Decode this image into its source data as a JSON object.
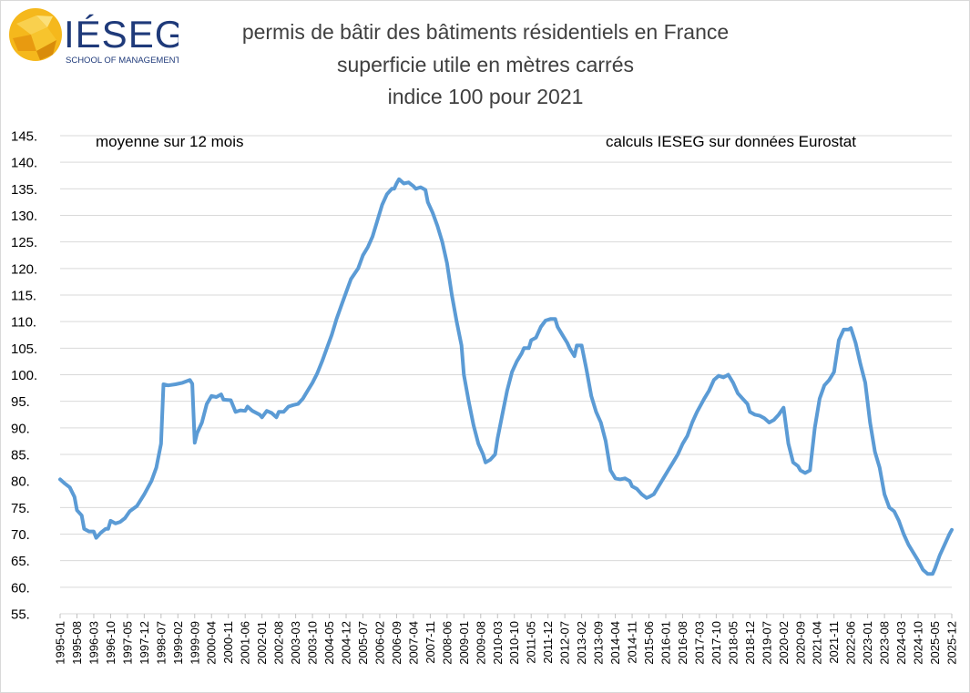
{
  "header": {
    "logo_text": "IÉSEG",
    "logo_subtitle": "SCHOOL OF MANAGEMENT",
    "title_line1": "permis de bâtir des bâtiments résidentiels en France",
    "title_line2": "superficie utile en mètres carrés",
    "title_line3": "indice 100 pour 2021"
  },
  "notes": {
    "left": "moyenne sur 12 mois",
    "right": "calculs IESEG sur données Eurostat"
  },
  "colors": {
    "line": "#5b9bd5",
    "grid": "#d9d9d9",
    "logo_gold": "#f5b81c",
    "logo_text": "#1f3a7a"
  },
  "chart_data": {
    "type": "line",
    "title": "permis de bâtir des bâtiments résidentiels en France — superficie utile en mètres carrés — indice 100 pour 2021",
    "xlabel": "",
    "ylabel": "",
    "ylim": [
      55,
      145
    ],
    "y_ticks": [
      "55.",
      "60.",
      "65.",
      "70.",
      "75.",
      "80.",
      "85.",
      "90.",
      "95.",
      "100.",
      "105.",
      "110.",
      "115.",
      "120.",
      "125.",
      "130.",
      "135.",
      "140.",
      "145."
    ],
    "x_start": "1995-01",
    "x_end": "2025-12",
    "x_tick_labels": [
      "1995-01",
      "1995-08",
      "1996-03",
      "1996-10",
      "1997-05",
      "1997-12",
      "1998-07",
      "1999-02",
      "1999-09",
      "2000-04",
      "2000-11",
      "2001-06",
      "2002-01",
      "2002-08",
      "2003-03",
      "2003-10",
      "2004-05",
      "2004-12",
      "2005-07",
      "2006-02",
      "2006-09",
      "2007-04",
      "2007-11",
      "2008-06",
      "2009-01",
      "2009-08",
      "2010-03",
      "2010-10",
      "2011-05",
      "2011-12",
      "2012-07",
      "2013-02",
      "2013-09",
      "2014-04",
      "2014-11",
      "2015-06",
      "2016-01",
      "2016-08",
      "2017-03",
      "2017-10",
      "2018-05",
      "2018-12",
      "2019-07",
      "2020-02",
      "2020-09",
      "2021-04",
      "2021-11",
      "2022-06",
      "2023-01",
      "2023-08",
      "2024-03",
      "2024-10",
      "2025-05",
      "2025-12"
    ],
    "grid": true,
    "legend": "none",
    "series": [
      {
        "name": "indice superficie utile (moyenne 12 mois)",
        "points": [
          [
            "1995-01",
            80.3
          ],
          [
            "1995-03",
            79.5
          ],
          [
            "1995-05",
            78.8
          ],
          [
            "1995-07",
            77.0
          ],
          [
            "1995-08",
            74.5
          ],
          [
            "1995-10",
            73.5
          ],
          [
            "1995-11",
            71.0
          ],
          [
            "1996-01",
            70.5
          ],
          [
            "1996-03",
            70.5
          ],
          [
            "1996-04",
            69.3
          ],
          [
            "1996-06",
            70.3
          ],
          [
            "1996-08",
            71.0
          ],
          [
            "1996-09",
            71.0
          ],
          [
            "1996-10",
            72.5
          ],
          [
            "1996-12",
            72.0
          ],
          [
            "1997-02",
            72.3
          ],
          [
            "1997-04",
            73.0
          ],
          [
            "1997-06",
            74.3
          ],
          [
            "1997-09",
            75.3
          ],
          [
            "1997-12",
            77.5
          ],
          [
            "1998-03",
            80.0
          ],
          [
            "1998-05",
            82.5
          ],
          [
            "1998-07",
            87.0
          ],
          [
            "1998-08",
            98.2
          ],
          [
            "1998-10",
            98.0
          ],
          [
            "1999-01",
            98.2
          ],
          [
            "1999-04",
            98.5
          ],
          [
            "1999-07",
            99.0
          ],
          [
            "1999-08",
            98.3
          ],
          [
            "1999-09",
            87.2
          ],
          [
            "1999-10",
            89.0
          ],
          [
            "1999-12",
            91.0
          ],
          [
            "2000-02",
            94.5
          ],
          [
            "2000-04",
            96.0
          ],
          [
            "2000-06",
            95.8
          ],
          [
            "2000-08",
            96.3
          ],
          [
            "2000-09",
            95.3
          ],
          [
            "2000-12",
            95.2
          ],
          [
            "2001-02",
            93.0
          ],
          [
            "2001-04",
            93.3
          ],
          [
            "2001-06",
            93.2
          ],
          [
            "2001-07",
            94.0
          ],
          [
            "2001-09",
            93.2
          ],
          [
            "2001-12",
            92.5
          ],
          [
            "2002-01",
            92.0
          ],
          [
            "2002-03",
            93.2
          ],
          [
            "2002-05",
            92.8
          ],
          [
            "2002-07",
            92.0
          ],
          [
            "2002-08",
            93.0
          ],
          [
            "2002-10",
            93.0
          ],
          [
            "2002-12",
            94.0
          ],
          [
            "2003-02",
            94.3
          ],
          [
            "2003-04",
            94.5
          ],
          [
            "2003-06",
            95.5
          ],
          [
            "2003-08",
            97.0
          ],
          [
            "2003-10",
            98.5
          ],
          [
            "2003-12",
            100.3
          ],
          [
            "2004-02",
            102.5
          ],
          [
            "2004-04",
            105.0
          ],
          [
            "2004-06",
            107.5
          ],
          [
            "2004-08",
            110.5
          ],
          [
            "2004-10",
            113.0
          ],
          [
            "2004-12",
            115.5
          ],
          [
            "2005-02",
            118.0
          ],
          [
            "2005-05",
            120.0
          ],
          [
            "2005-07",
            122.5
          ],
          [
            "2005-09",
            124.0
          ],
          [
            "2005-11",
            126.0
          ],
          [
            "2006-01",
            129.0
          ],
          [
            "2006-03",
            132.0
          ],
          [
            "2006-05",
            134.0
          ],
          [
            "2006-07",
            135.0
          ],
          [
            "2006-08",
            135.0
          ],
          [
            "2006-09",
            136.0
          ],
          [
            "2006-10",
            136.8
          ],
          [
            "2006-12",
            136.0
          ],
          [
            "2007-02",
            136.2
          ],
          [
            "2007-04",
            135.5
          ],
          [
            "2007-05",
            135.0
          ],
          [
            "2007-07",
            135.3
          ],
          [
            "2007-09",
            134.8
          ],
          [
            "2007-10",
            132.5
          ],
          [
            "2007-12",
            130.5
          ],
          [
            "2008-02",
            128.0
          ],
          [
            "2008-04",
            125.0
          ],
          [
            "2008-06",
            121.0
          ],
          [
            "2008-08",
            115.0
          ],
          [
            "2008-10",
            110.0
          ],
          [
            "2008-12",
            105.5
          ],
          [
            "2009-01",
            100.0
          ],
          [
            "2009-03",
            95.0
          ],
          [
            "2009-05",
            90.5
          ],
          [
            "2009-07",
            87.0
          ],
          [
            "2009-09",
            85.0
          ],
          [
            "2009-10",
            83.5
          ],
          [
            "2009-12",
            84.0
          ],
          [
            "2010-02",
            85.0
          ],
          [
            "2010-03",
            88.0
          ],
          [
            "2010-05",
            92.5
          ],
          [
            "2010-07",
            97.0
          ],
          [
            "2010-09",
            100.5
          ],
          [
            "2010-11",
            102.5
          ],
          [
            "2011-01",
            104.0
          ],
          [
            "2011-02",
            105.0
          ],
          [
            "2011-04",
            105.0
          ],
          [
            "2011-05",
            106.5
          ],
          [
            "2011-07",
            107.0
          ],
          [
            "2011-09",
            109.0
          ],
          [
            "2011-11",
            110.2
          ],
          [
            "2012-01",
            110.5
          ],
          [
            "2012-03",
            110.5
          ],
          [
            "2012-04",
            109.0
          ],
          [
            "2012-06",
            107.5
          ],
          [
            "2012-08",
            106.0
          ],
          [
            "2012-09",
            105.0
          ],
          [
            "2012-11",
            103.5
          ],
          [
            "2012-12",
            105.5
          ],
          [
            "2013-02",
            105.5
          ],
          [
            "2013-04",
            101.0
          ],
          [
            "2013-06",
            96.0
          ],
          [
            "2013-08",
            93.0
          ],
          [
            "2013-10",
            91.0
          ],
          [
            "2013-12",
            87.5
          ],
          [
            "2014-02",
            82.0
          ],
          [
            "2014-04",
            80.5
          ],
          [
            "2014-06",
            80.3
          ],
          [
            "2014-08",
            80.5
          ],
          [
            "2014-10",
            80.0
          ],
          [
            "2014-11",
            79.0
          ],
          [
            "2015-01",
            78.5
          ],
          [
            "2015-03",
            77.5
          ],
          [
            "2015-05",
            76.8
          ],
          [
            "2015-06",
            77.0
          ],
          [
            "2015-08",
            77.5
          ],
          [
            "2015-10",
            79.0
          ],
          [
            "2015-12",
            80.5
          ],
          [
            "2016-02",
            82.0
          ],
          [
            "2016-04",
            83.5
          ],
          [
            "2016-06",
            85.0
          ],
          [
            "2016-08",
            87.0
          ],
          [
            "2016-10",
            88.5
          ],
          [
            "2016-12",
            91.0
          ],
          [
            "2017-02",
            93.0
          ],
          [
            "2017-05",
            95.5
          ],
          [
            "2017-07",
            97.0
          ],
          [
            "2017-09",
            99.0
          ],
          [
            "2017-11",
            99.8
          ],
          [
            "2018-01",
            99.5
          ],
          [
            "2018-03",
            100.0
          ],
          [
            "2018-05",
            98.5
          ],
          [
            "2018-07",
            96.5
          ],
          [
            "2018-09",
            95.5
          ],
          [
            "2018-11",
            94.5
          ],
          [
            "2018-12",
            93.0
          ],
          [
            "2019-02",
            92.5
          ],
          [
            "2019-04",
            92.3
          ],
          [
            "2019-06",
            91.8
          ],
          [
            "2019-08",
            91.0
          ],
          [
            "2019-10",
            91.5
          ],
          [
            "2019-12",
            92.5
          ],
          [
            "2020-02",
            93.8
          ],
          [
            "2020-04",
            87.0
          ],
          [
            "2020-06",
            83.5
          ],
          [
            "2020-08",
            82.8
          ],
          [
            "2020-09",
            82.0
          ],
          [
            "2020-11",
            81.5
          ],
          [
            "2021-01",
            82.0
          ],
          [
            "2021-03",
            90.0
          ],
          [
            "2021-05",
            95.5
          ],
          [
            "2021-07",
            98.0
          ],
          [
            "2021-09",
            99.0
          ],
          [
            "2021-11",
            100.5
          ],
          [
            "2022-01",
            106.5
          ],
          [
            "2022-03",
            108.5
          ],
          [
            "2022-05",
            108.5
          ],
          [
            "2022-06",
            108.8
          ],
          [
            "2022-08",
            106.0
          ],
          [
            "2022-10",
            102.0
          ],
          [
            "2022-12",
            98.5
          ],
          [
            "2023-02",
            91.0
          ],
          [
            "2023-04",
            85.5
          ],
          [
            "2023-06",
            82.5
          ],
          [
            "2023-08",
            77.5
          ],
          [
            "2023-10",
            75.0
          ],
          [
            "2023-12",
            74.3
          ],
          [
            "2024-02",
            72.5
          ],
          [
            "2024-04",
            70.0
          ],
          [
            "2024-06",
            68.0
          ],
          [
            "2024-08",
            66.5
          ],
          [
            "2024-10",
            65.0
          ],
          [
            "2024-12",
            63.3
          ],
          [
            "2025-02",
            62.5
          ],
          [
            "2025-04",
            62.5
          ],
          [
            "2025-05",
            63.5
          ],
          [
            "2025-07",
            66.0
          ],
          [
            "2025-09",
            68.0
          ],
          [
            "2025-11",
            70.0
          ],
          [
            "2025-12",
            70.8
          ]
        ]
      }
    ]
  }
}
